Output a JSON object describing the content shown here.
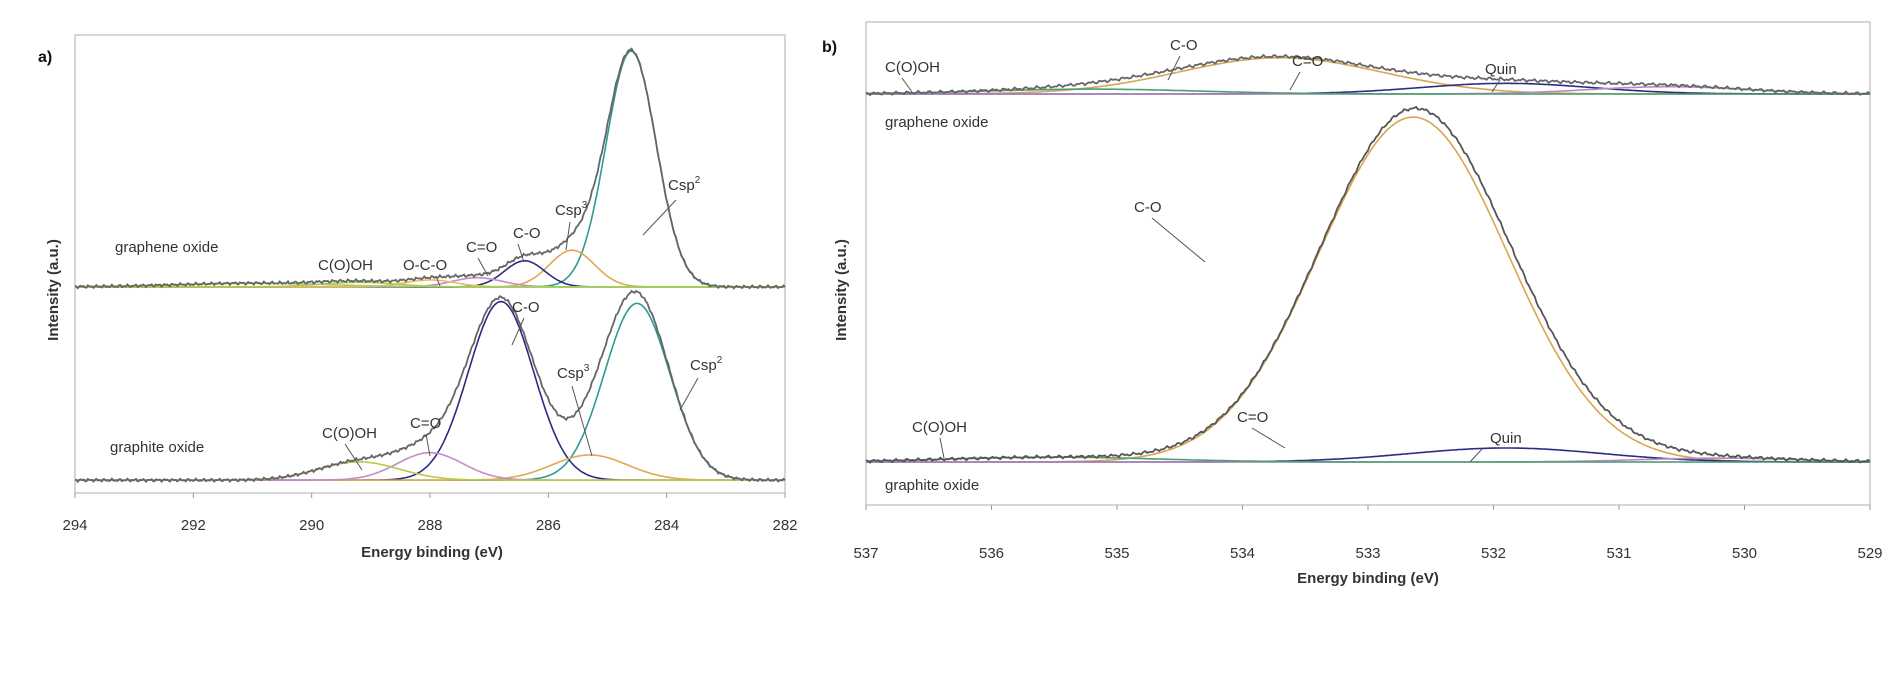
{
  "chart_data": [
    {
      "type": "line",
      "panel_label": "a)",
      "xlabel": "Energy binding (eV)",
      "ylabel": "Intensity (a.u.)",
      "xlim": [
        294,
        282
      ],
      "x_reversed": true,
      "xticks": [
        "294",
        "292",
        "290",
        "288",
        "286",
        "284",
        "282"
      ],
      "ylim": [
        0,
        100
      ],
      "grid": false,
      "samples": [
        {
          "name": "graphene oxide",
          "baseline": 45,
          "envelope_color": "#666666",
          "components": [
            {
              "label": "Csp2",
              "center": 284.6,
              "height": 51.5,
              "fwhm": 1.0,
              "color": "#2f9a94"
            },
            {
              "label": "Csp3",
              "center": 285.6,
              "height": 8,
              "fwhm": 0.9,
              "color": "#e0a850"
            },
            {
              "label": "C-O",
              "center": 286.4,
              "height": 5.7,
              "fwhm": 0.8,
              "color": "#2b2b86"
            },
            {
              "label": "C=O",
              "center": 287.2,
              "height": 2,
              "fwhm": 1.0,
              "color": "#c48cc4"
            },
            {
              "label": "O-C-O",
              "center": 288.0,
              "height": 1.5,
              "fwhm": 1.0,
              "color": "#e8c060"
            },
            {
              "label": "C(O)OH",
              "center": 289.2,
              "height": 1,
              "fwhm": 1.5,
              "color": "#b8c848"
            },
            {
              "label": "",
              "center": 291.0,
              "height": 0.8,
              "fwhm": 3.0,
              "color": "#9fcf60"
            }
          ]
        },
        {
          "name": "graphite oxide",
          "baseline": 2.8,
          "envelope_color": "#666666",
          "components": [
            {
              "label": "Csp2",
              "center": 284.5,
              "height": 38.6,
              "fwhm": 1.3,
              "color": "#2f9a94"
            },
            {
              "label": "C-O",
              "center": 286.8,
              "height": 39,
              "fwhm": 1.3,
              "color": "#2b2b86"
            },
            {
              "label": "Csp3",
              "center": 285.3,
              "height": 5.5,
              "fwhm": 1.5,
              "color": "#e0a850"
            },
            {
              "label": "C=O",
              "center": 288.0,
              "height": 6,
              "fwhm": 1.3,
              "color": "#c48cc4"
            },
            {
              "label": "C(O)OH",
              "center": 289.2,
              "height": 4,
              "fwhm": 1.6,
              "color": "#b8c848"
            }
          ]
        }
      ],
      "annotations": [
        {
          "text": "C(O)OH",
          "sup": ""
        },
        {
          "text": "O-C-O",
          "sup": ""
        },
        {
          "text": "C=O",
          "sup": ""
        },
        {
          "text": "C-O",
          "sup": ""
        },
        {
          "text": "Csp",
          "sup": "3"
        },
        {
          "text": "Csp",
          "sup": "2"
        },
        {
          "text": "C-O",
          "sup": ""
        },
        {
          "text": "Csp",
          "sup": "3"
        },
        {
          "text": "Csp",
          "sup": "2"
        },
        {
          "text": "C=O",
          "sup": ""
        },
        {
          "text": "C(O)OH",
          "sup": ""
        }
      ]
    },
    {
      "type": "line",
      "panel_label": "b)",
      "xlabel": "Energy binding (eV)",
      "ylabel": "Intensity (a.u.)",
      "xlim": [
        537,
        529
      ],
      "x_reversed": true,
      "xticks": [
        "537",
        "536",
        "535",
        "534",
        "533",
        "532",
        "531",
        "530",
        "529"
      ],
      "ylim": [
        0,
        100
      ],
      "grid": false,
      "samples": [
        {
          "name": "graphene oxide",
          "baseline": 85.1,
          "envelope_color": "#666666",
          "components": [
            {
              "label": "C-O",
              "center": 533.7,
              "height": 7.5,
              "fwhm": 1.9,
              "color": "#d8a650"
            },
            {
              "label": "C=O",
              "center": 531.9,
              "height": 2.2,
              "fwhm": 1.6,
              "color": "#2b2b86"
            },
            {
              "label": "Quin",
              "center": 530.6,
              "height": 1.5,
              "fwhm": 1.5,
              "color": "#b888c8"
            },
            {
              "label": "C(O)OH",
              "center": 535.2,
              "height": 1,
              "fwhm": 2.0,
              "color": "#4aa070"
            }
          ]
        },
        {
          "name": "graphite oxide",
          "baseline": 8.9,
          "envelope_color": "#555555",
          "components": [
            {
              "label": "C-O",
              "center": 532.64,
              "height": 71.4,
              "fwhm": 1.77,
              "color": "#d8a650"
            },
            {
              "label": "C=O",
              "center": 531.9,
              "height": 2.9,
              "fwhm": 1.8,
              "color": "#2b2b86"
            },
            {
              "label": "Quin",
              "center": 530.2,
              "height": 0.8,
              "fwhm": 1.5,
              "color": "#b888c8"
            },
            {
              "label": "C(O)OH",
              "center": 535.5,
              "height": 1,
              "fwhm": 2.0,
              "color": "#4aa070"
            }
          ]
        }
      ],
      "annotations": [
        {
          "text": "C(O)OH",
          "sup": ""
        },
        {
          "text": "C-O",
          "sup": ""
        },
        {
          "text": "C=O",
          "sup": ""
        },
        {
          "text": "Quin",
          "sup": ""
        },
        {
          "text": "C-O",
          "sup": ""
        },
        {
          "text": "C(O)OH",
          "sup": ""
        },
        {
          "text": "C=O",
          "sup": ""
        },
        {
          "text": "Quin",
          "sup": ""
        }
      ]
    }
  ]
}
